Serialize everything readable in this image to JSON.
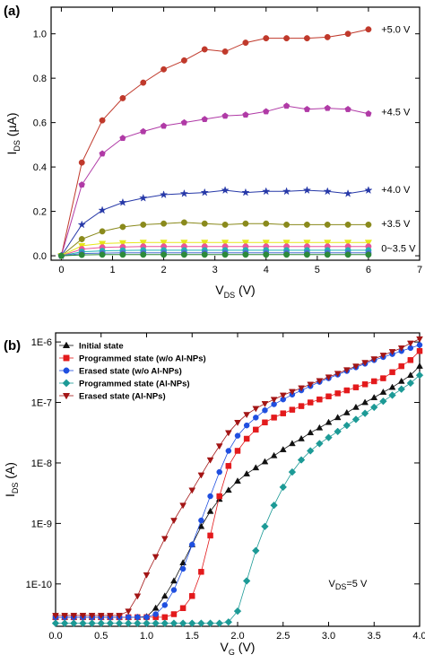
{
  "chart_data": [
    {
      "id": "a",
      "panel_label": "(a)",
      "type": "line",
      "xlabel_main": "V",
      "xlabel_sub": "DS",
      "xlabel_unit": " (V)",
      "ylabel_main": "I",
      "ylabel_sub": "DS",
      "ylabel_unit": " (µA)",
      "xlim": [
        -0.2,
        7
      ],
      "ylim": [
        -0.02,
        1.12
      ],
      "xticks": [
        0,
        1,
        2,
        3,
        4,
        5,
        6,
        7
      ],
      "yticks": [
        0.0,
        0.2,
        0.4,
        0.6,
        0.8,
        1.0
      ],
      "ytick_labels": [
        "0.0",
        "0.2",
        "0.4",
        "0.6",
        "0.8",
        "1.0"
      ],
      "series": [
        {
          "name": "+5.0 V",
          "color": "#c0392b",
          "marker": "circle",
          "x": [
            0,
            0.4,
            0.8,
            1.2,
            1.6,
            2.0,
            2.4,
            2.8,
            3.2,
            3.6,
            4.0,
            4.4,
            4.8,
            5.2,
            5.6,
            6.0
          ],
          "y": [
            0,
            0.42,
            0.61,
            0.71,
            0.78,
            0.84,
            0.88,
            0.93,
            0.92,
            0.96,
            0.98,
            0.98,
            0.98,
            0.985,
            1.0,
            1.02
          ]
        },
        {
          "name": "+4.5 V",
          "color": "#b03aa6",
          "marker": "pentagon",
          "x": [
            0,
            0.4,
            0.8,
            1.2,
            1.6,
            2.0,
            2.4,
            2.8,
            3.2,
            3.6,
            4.0,
            4.4,
            4.8,
            5.2,
            5.6,
            6.0
          ],
          "y": [
            0,
            0.32,
            0.46,
            0.53,
            0.56,
            0.585,
            0.6,
            0.615,
            0.63,
            0.635,
            0.65,
            0.675,
            0.66,
            0.665,
            0.66,
            0.64
          ]
        },
        {
          "name": "+4.0 V",
          "color": "#2638a8",
          "marker": "star",
          "x": [
            0,
            0.4,
            0.8,
            1.2,
            1.6,
            2.0,
            2.4,
            2.8,
            3.2,
            3.6,
            4.0,
            4.4,
            4.8,
            5.2,
            5.6,
            6.0
          ],
          "y": [
            0,
            0.14,
            0.205,
            0.24,
            0.26,
            0.275,
            0.28,
            0.285,
            0.295,
            0.285,
            0.29,
            0.29,
            0.295,
            0.29,
            0.28,
            0.295
          ]
        },
        {
          "name": "+3.5 V",
          "color": "#8a8a1c",
          "marker": "circle",
          "x": [
            0,
            0.4,
            0.8,
            1.2,
            1.6,
            2.0,
            2.4,
            2.8,
            3.2,
            3.6,
            4.0,
            4.4,
            4.8,
            5.2,
            5.6,
            6.0
          ],
          "y": [
            0,
            0.075,
            0.11,
            0.13,
            0.14,
            0.145,
            0.15,
            0.145,
            0.14,
            0.145,
            0.145,
            0.14,
            0.14,
            0.14,
            0.14,
            0.14
          ]
        },
        {
          "name": "0~3.5 V (a)",
          "color": "#e6e61a",
          "marker": "triangle-down",
          "x": [
            0,
            0.4,
            0.8,
            1.2,
            1.6,
            2.0,
            2.4,
            2.8,
            3.2,
            3.6,
            4.0,
            4.4,
            4.8,
            5.2,
            5.6,
            6.0
          ],
          "y": [
            0,
            0.045,
            0.055,
            0.058,
            0.06,
            0.06,
            0.06,
            0.06,
            0.06,
            0.06,
            0.06,
            0.06,
            0.06,
            0.06,
            0.06,
            0.06
          ]
        },
        {
          "name": "0~3.5 V (b)",
          "color": "#e8559a",
          "marker": "circle",
          "x": [
            0,
            0.4,
            0.8,
            1.2,
            1.6,
            2.0,
            2.4,
            2.8,
            3.2,
            3.6,
            4.0,
            4.4,
            4.8,
            5.2,
            5.6,
            6.0
          ],
          "y": [
            0,
            0.03,
            0.038,
            0.04,
            0.042,
            0.042,
            0.042,
            0.042,
            0.042,
            0.042,
            0.042,
            0.042,
            0.042,
            0.042,
            0.042,
            0.042
          ]
        },
        {
          "name": "0~3.5 V (c)",
          "color": "#1fb5b5",
          "marker": "circle",
          "x": [
            0,
            0.4,
            0.8,
            1.2,
            1.6,
            2.0,
            2.4,
            2.8,
            3.2,
            3.6,
            4.0,
            4.4,
            4.8,
            5.2,
            5.6,
            6.0
          ],
          "y": [
            0,
            0.018,
            0.022,
            0.024,
            0.025,
            0.025,
            0.025,
            0.025,
            0.025,
            0.025,
            0.025,
            0.025,
            0.025,
            0.025,
            0.025,
            0.025
          ]
        },
        {
          "name": "0~3.5 V (d)",
          "color": "#4a6fd0",
          "marker": "circle",
          "x": [
            0,
            0.4,
            0.8,
            1.2,
            1.6,
            2.0,
            2.4,
            2.8,
            3.2,
            3.6,
            4.0,
            4.4,
            4.8,
            5.2,
            5.6,
            6.0
          ],
          "y": [
            0,
            0.01,
            0.012,
            0.013,
            0.013,
            0.013,
            0.013,
            0.013,
            0.013,
            0.013,
            0.013,
            0.013,
            0.013,
            0.013,
            0.013,
            0.013
          ]
        },
        {
          "name": "0~3.5 V (e)",
          "color": "#2c8a3a",
          "marker": "circle",
          "x": [
            0,
            0.4,
            0.8,
            1.2,
            1.6,
            2.0,
            2.4,
            2.8,
            3.2,
            3.6,
            4.0,
            4.4,
            4.8,
            5.2,
            5.6,
            6.0
          ],
          "y": [
            0,
            0.004,
            0.005,
            0.005,
            0.005,
            0.005,
            0.005,
            0.005,
            0.005,
            0.005,
            0.005,
            0.005,
            0.005,
            0.005,
            0.005,
            0.005
          ]
        }
      ],
      "annotations": [
        {
          "text": "+5.0 V",
          "x": 6.25,
          "y": 1.02
        },
        {
          "text": "+4.5 V",
          "x": 6.25,
          "y": 0.65
        },
        {
          "text": "+4.0 V",
          "x": 6.25,
          "y": 0.3
        },
        {
          "text": "+3.5 V",
          "x": 6.25,
          "y": 0.145
        },
        {
          "text": "0~3.5 V",
          "x": 6.25,
          "y": 0.035
        }
      ],
      "grid": false
    },
    {
      "id": "b",
      "panel_label": "(b)",
      "type": "scatter",
      "xlabel_main": "V",
      "xlabel_sub": "G",
      "xlabel_unit": " (V)",
      "ylabel_main": "I",
      "ylabel_sub": "DS",
      "ylabel_unit": " (A)",
      "xlim": [
        0,
        4
      ],
      "ylim_log10": [
        -10.7,
        -5.85
      ],
      "yscale": "log",
      "xticks": [
        0.0,
        0.5,
        1.0,
        1.5,
        2.0,
        2.5,
        3.0,
        3.5,
        4.0
      ],
      "xtick_labels": [
        "0.0",
        "0.5",
        "1.0",
        "1.5",
        "2.0",
        "2.5",
        "3.0",
        "3.5",
        "4.0"
      ],
      "yticks_log10": [
        -10,
        -9,
        -8,
        -7,
        -6
      ],
      "ytick_labels": [
        "1E-10",
        "1E-9",
        "1E-8",
        "1E-7",
        "1E-6"
      ],
      "annotation": {
        "main": "V",
        "sub": "DS",
        "rest": "=5 V"
      },
      "legend": {
        "placement": "top-left"
      },
      "series": [
        {
          "name": "Initial state",
          "color": "#111111",
          "marker": "triangle-up",
          "x": [
            0,
            0.1,
            0.2,
            0.3,
            0.4,
            0.5,
            0.6,
            0.7,
            0.8,
            0.9,
            1.0,
            1.1,
            1.2,
            1.3,
            1.4,
            1.5,
            1.6,
            1.7,
            1.8,
            1.9,
            2.0,
            2.1,
            2.2,
            2.3,
            2.4,
            2.5,
            2.6,
            2.7,
            2.8,
            2.9,
            3.0,
            3.1,
            3.2,
            3.3,
            3.4,
            3.5,
            3.6,
            3.7,
            3.8,
            3.9,
            4.0
          ],
          "y_log10": [
            -10.55,
            -10.55,
            -10.55,
            -10.55,
            -10.55,
            -10.55,
            -10.55,
            -10.55,
            -10.55,
            -10.55,
            -10.54,
            -10.4,
            -10.2,
            -9.95,
            -9.65,
            -9.35,
            -9.05,
            -8.8,
            -8.6,
            -8.45,
            -8.3,
            -8.18,
            -8.08,
            -7.98,
            -7.88,
            -7.78,
            -7.68,
            -7.6,
            -7.5,
            -7.42,
            -7.33,
            -7.25,
            -7.17,
            -7.08,
            -7.0,
            -6.92,
            -6.83,
            -6.75,
            -6.65,
            -6.55,
            -6.4
          ]
        },
        {
          "name": "Programmed state (w/o Al-NPs)",
          "color": "#e31a1c",
          "marker": "square",
          "x": [
            0,
            0.1,
            0.2,
            0.3,
            0.4,
            0.5,
            0.6,
            0.7,
            0.8,
            0.9,
            1.0,
            1.1,
            1.2,
            1.3,
            1.4,
            1.5,
            1.6,
            1.7,
            1.8,
            1.9,
            2.0,
            2.1,
            2.2,
            2.3,
            2.4,
            2.5,
            2.6,
            2.7,
            2.8,
            2.9,
            3.0,
            3.1,
            3.2,
            3.3,
            3.4,
            3.5,
            3.6,
            3.7,
            3.8,
            3.9,
            4.0
          ],
          "y_log10": [
            -10.55,
            -10.55,
            -10.55,
            -10.55,
            -10.55,
            -10.55,
            -10.55,
            -10.55,
            -10.55,
            -10.55,
            -10.55,
            -10.55,
            -10.55,
            -10.5,
            -10.4,
            -10.2,
            -9.8,
            -9.2,
            -8.55,
            -8.05,
            -7.8,
            -7.6,
            -7.45,
            -7.33,
            -7.25,
            -7.18,
            -7.12,
            -7.06,
            -7.0,
            -6.95,
            -6.9,
            -6.85,
            -6.8,
            -6.75,
            -6.7,
            -6.65,
            -6.6,
            -6.5,
            -6.4,
            -6.3,
            -6.15
          ]
        },
        {
          "name": "Erased state (w/o Al-NPs)",
          "color": "#1f4fe0",
          "marker": "circle",
          "x": [
            0,
            0.1,
            0.2,
            0.3,
            0.4,
            0.5,
            0.6,
            0.7,
            0.8,
            0.9,
            1.0,
            1.1,
            1.2,
            1.3,
            1.4,
            1.5,
            1.6,
            1.7,
            1.8,
            1.9,
            2.0,
            2.1,
            2.2,
            2.3,
            2.4,
            2.5,
            2.6,
            2.7,
            2.8,
            2.9,
            3.0,
            3.1,
            3.2,
            3.3,
            3.4,
            3.5,
            3.6,
            3.7,
            3.8,
            3.9,
            4.0
          ],
          "y_log10": [
            -10.55,
            -10.55,
            -10.55,
            -10.55,
            -10.55,
            -10.55,
            -10.55,
            -10.55,
            -10.55,
            -10.55,
            -10.55,
            -10.5,
            -10.35,
            -10.1,
            -9.75,
            -9.35,
            -8.95,
            -8.55,
            -8.15,
            -7.8,
            -7.55,
            -7.38,
            -7.25,
            -7.13,
            -7.03,
            -6.95,
            -6.87,
            -6.8,
            -6.73,
            -6.66,
            -6.6,
            -6.54,
            -6.48,
            -6.42,
            -6.36,
            -6.3,
            -6.25,
            -6.2,
            -6.15,
            -6.1,
            -6.05
          ]
        },
        {
          "name": "Programmed state (Al-NPs)",
          "color": "#1c9a96",
          "marker": "diamond",
          "x": [
            0,
            0.1,
            0.2,
            0.3,
            0.4,
            0.5,
            0.6,
            0.7,
            0.8,
            0.9,
            1.0,
            1.1,
            1.2,
            1.3,
            1.4,
            1.5,
            1.6,
            1.7,
            1.8,
            1.9,
            2.0,
            2.1,
            2.2,
            2.3,
            2.4,
            2.5,
            2.6,
            2.7,
            2.8,
            2.9,
            3.0,
            3.1,
            3.2,
            3.3,
            3.4,
            3.5,
            3.6,
            3.7,
            3.8,
            3.9,
            4.0
          ],
          "y_log10": [
            -10.65,
            -10.65,
            -10.65,
            -10.65,
            -10.65,
            -10.65,
            -10.65,
            -10.65,
            -10.65,
            -10.65,
            -10.65,
            -10.65,
            -10.65,
            -10.65,
            -10.65,
            -10.65,
            -10.65,
            -10.65,
            -10.65,
            -10.63,
            -10.45,
            -9.95,
            -9.45,
            -9.05,
            -8.7,
            -8.4,
            -8.15,
            -7.95,
            -7.8,
            -7.68,
            -7.58,
            -7.48,
            -7.38,
            -7.28,
            -7.18,
            -7.08,
            -6.98,
            -6.88,
            -6.78,
            -6.68,
            -6.55
          ]
        },
        {
          "name": "Erased state (Al-NPs)",
          "color": "#a31515",
          "marker": "triangle-down",
          "x": [
            0,
            0.1,
            0.2,
            0.3,
            0.4,
            0.5,
            0.6,
            0.7,
            0.8,
            0.9,
            1.0,
            1.1,
            1.2,
            1.3,
            1.4,
            1.5,
            1.6,
            1.7,
            1.8,
            1.9,
            2.0,
            2.1,
            2.2,
            2.3,
            2.4,
            2.5,
            2.6,
            2.7,
            2.8,
            2.9,
            3.0,
            3.1,
            3.2,
            3.3,
            3.4,
            3.5,
            3.6,
            3.7,
            3.8,
            3.9,
            4.0
          ],
          "y_log10": [
            -10.52,
            -10.52,
            -10.52,
            -10.52,
            -10.52,
            -10.52,
            -10.52,
            -10.52,
            -10.45,
            -10.2,
            -9.85,
            -9.55,
            -9.25,
            -8.95,
            -8.7,
            -8.45,
            -8.2,
            -7.95,
            -7.72,
            -7.5,
            -7.33,
            -7.2,
            -7.1,
            -7.02,
            -6.95,
            -6.88,
            -6.82,
            -6.76,
            -6.7,
            -6.64,
            -6.58,
            -6.52,
            -6.46,
            -6.4,
            -6.34,
            -6.28,
            -6.22,
            -6.16,
            -6.1,
            -6.02,
            -5.95
          ]
        }
      ]
    }
  ]
}
